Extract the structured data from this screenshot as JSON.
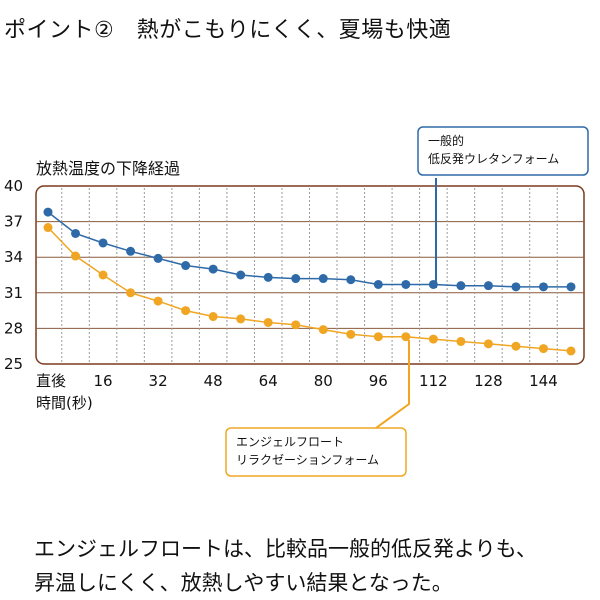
{
  "heading": "ポイント②　熱がこもりにくく、夏場も快適",
  "chart_data": {
    "type": "line",
    "title": "放熱温度の下降経過",
    "xlabel": "時間(秒)",
    "x_first_label": "直後",
    "x_tick_labels": [
      "16",
      "32",
      "48",
      "64",
      "80",
      "96",
      "112",
      "128",
      "144"
    ],
    "ylim": [
      25,
      40
    ],
    "y_ticks": [
      40,
      37,
      34,
      31,
      28,
      25
    ],
    "x": [
      0,
      8,
      16,
      24,
      32,
      40,
      48,
      56,
      64,
      72,
      80,
      88,
      96,
      104,
      112,
      120,
      128,
      136,
      144,
      152
    ],
    "series": [
      {
        "name": "一般的低反発ウレタンフォーム",
        "color": "#2e6aa8",
        "values": [
          37.8,
          36.0,
          35.2,
          34.5,
          33.9,
          33.3,
          33.0,
          32.5,
          32.3,
          32.2,
          32.2,
          32.1,
          31.7,
          31.7,
          31.7,
          31.6,
          31.6,
          31.5,
          31.5,
          31.5
        ]
      },
      {
        "name": "エンジェルフロートリラクゼーションフォーム",
        "color": "#f0a623",
        "values": [
          36.5,
          34.1,
          32.5,
          31.0,
          30.3,
          29.5,
          29.0,
          28.8,
          28.5,
          28.3,
          27.9,
          27.5,
          27.3,
          27.3,
          27.1,
          26.9,
          26.7,
          26.5,
          26.3,
          26.1
        ]
      }
    ],
    "callouts": {
      "blue_line1": "一般的",
      "blue_line2": "低反発ウレタンフォーム",
      "orange_line1": "エンジェルフロート",
      "orange_line2": "リラクゼーションフォーム"
    }
  },
  "conclusion": {
    "line1": "エンジェルフロートは、比較品一般的低反発よりも、",
    "line2": "昇温しにくく、放熱しやすい結果となった。"
  }
}
